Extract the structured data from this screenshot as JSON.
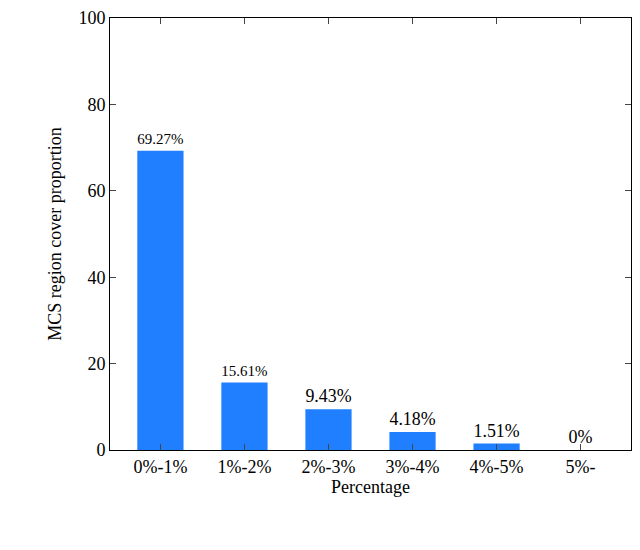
{
  "chart_data": {
    "type": "bar",
    "x_label": "Percentage",
    "y_label": "MCS region cover proportion",
    "categories": [
      "0%-1%",
      "1%-2%",
      "2%-3%",
      "3%-4%",
      "4%-5%",
      "5%-"
    ],
    "values": [
      69.27,
      15.61,
      9.43,
      4.18,
      1.51,
      0
    ],
    "value_labels": [
      "69.27%",
      "15.61%",
      "9.43%",
      "4.18%",
      "1.51%",
      "0%"
    ],
    "data_labels": true,
    "color": "#1f7fff",
    "ylim": [
      0,
      100
    ],
    "yticks": [
      0,
      20,
      40,
      60,
      80,
      100
    ],
    "grid": false
  }
}
